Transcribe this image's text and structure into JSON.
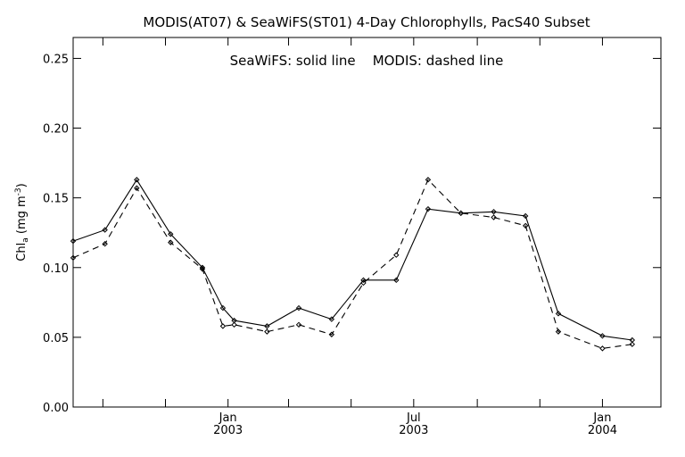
{
  "chart_data": {
    "type": "line",
    "title": "MODIS(AT07) & SeaWiFS(ST01) 4-Day Chlorophylls, PacS40 Subset",
    "annotation": "SeaWiFS: solid line    MODIS: dashed line",
    "ylabel": "Chl",
    "ylabel_sub": "a",
    "ylabel_unit_open": " (mg m",
    "ylabel_unit_sup": "-3",
    "ylabel_unit_close": ")",
    "ylim": [
      0,
      0.265
    ],
    "xlim": [
      "2002-08-03",
      "2004-02-27"
    ],
    "grid": false,
    "y_ticks": [
      0.0,
      0.05,
      0.1,
      0.15,
      0.2,
      0.25
    ],
    "y_tick_labels": [
      "0.00",
      "0.05",
      "0.10",
      "0.15",
      "0.20",
      "0.25"
    ],
    "x_major_ticks": [
      {
        "date": "2003-01-01",
        "month": "Jan",
        "year": "2003"
      },
      {
        "date": "2003-07-01",
        "month": "Jul",
        "year": "2003"
      },
      {
        "date": "2004-01-01",
        "month": "Jan",
        "year": "2004"
      }
    ],
    "x_minor_ticks": [
      "2002-09-01",
      "2002-11-01",
      "2003-03-01",
      "2003-05-01",
      "2003-09-01",
      "2003-11-01"
    ],
    "series": [
      {
        "name": "SeaWiFS",
        "style": "solid",
        "color": "#000000",
        "points": [
          {
            "x": "2002-08-03",
            "y": 0.119
          },
          {
            "x": "2002-09-03",
            "y": 0.127
          },
          {
            "x": "2002-10-04",
            "y": 0.163
          },
          {
            "x": "2002-11-06",
            "y": 0.124
          },
          {
            "x": "2002-12-07",
            "y": 0.1
          },
          {
            "x": "2002-12-27",
            "y": 0.071
          },
          {
            "x": "2003-01-07",
            "y": 0.062
          },
          {
            "x": "2003-02-08",
            "y": 0.058
          },
          {
            "x": "2003-03-11",
            "y": 0.071
          },
          {
            "x": "2003-04-12",
            "y": 0.063
          },
          {
            "x": "2003-05-13",
            "y": 0.091
          },
          {
            "x": "2003-06-14",
            "y": 0.091
          },
          {
            "x": "2003-07-15",
            "y": 0.142
          },
          {
            "x": "2003-08-16",
            "y": 0.139
          },
          {
            "x": "2003-09-17",
            "y": 0.14
          },
          {
            "x": "2003-10-18",
            "y": 0.137
          },
          {
            "x": "2003-11-19",
            "y": 0.067
          },
          {
            "x": "2004-01-01",
            "y": 0.051
          },
          {
            "x": "2004-01-30",
            "y": 0.048
          }
        ]
      },
      {
        "name": "MODIS",
        "style": "dashed",
        "color": "#000000",
        "points": [
          {
            "x": "2002-08-03",
            "y": 0.107
          },
          {
            "x": "2002-09-03",
            "y": 0.117
          },
          {
            "x": "2002-10-04",
            "y": 0.157
          },
          {
            "x": "2002-11-06",
            "y": 0.118
          },
          {
            "x": "2002-12-07",
            "y": 0.099
          },
          {
            "x": "2002-12-27",
            "y": 0.058
          },
          {
            "x": "2003-01-07",
            "y": 0.059
          },
          {
            "x": "2003-02-08",
            "y": 0.054
          },
          {
            "x": "2003-03-11",
            "y": 0.059
          },
          {
            "x": "2003-04-12",
            "y": 0.052
          },
          {
            "x": "2003-05-13",
            "y": 0.089
          },
          {
            "x": "2003-06-14",
            "y": 0.109
          },
          {
            "x": "2003-07-15",
            "y": 0.163
          },
          {
            "x": "2003-08-16",
            "y": 0.139
          },
          {
            "x": "2003-09-17",
            "y": 0.136
          },
          {
            "x": "2003-10-18",
            "y": 0.13
          },
          {
            "x": "2003-11-19",
            "y": 0.054
          },
          {
            "x": "2004-01-01",
            "y": 0.042
          },
          {
            "x": "2004-01-30",
            "y": 0.045
          }
        ]
      }
    ]
  }
}
